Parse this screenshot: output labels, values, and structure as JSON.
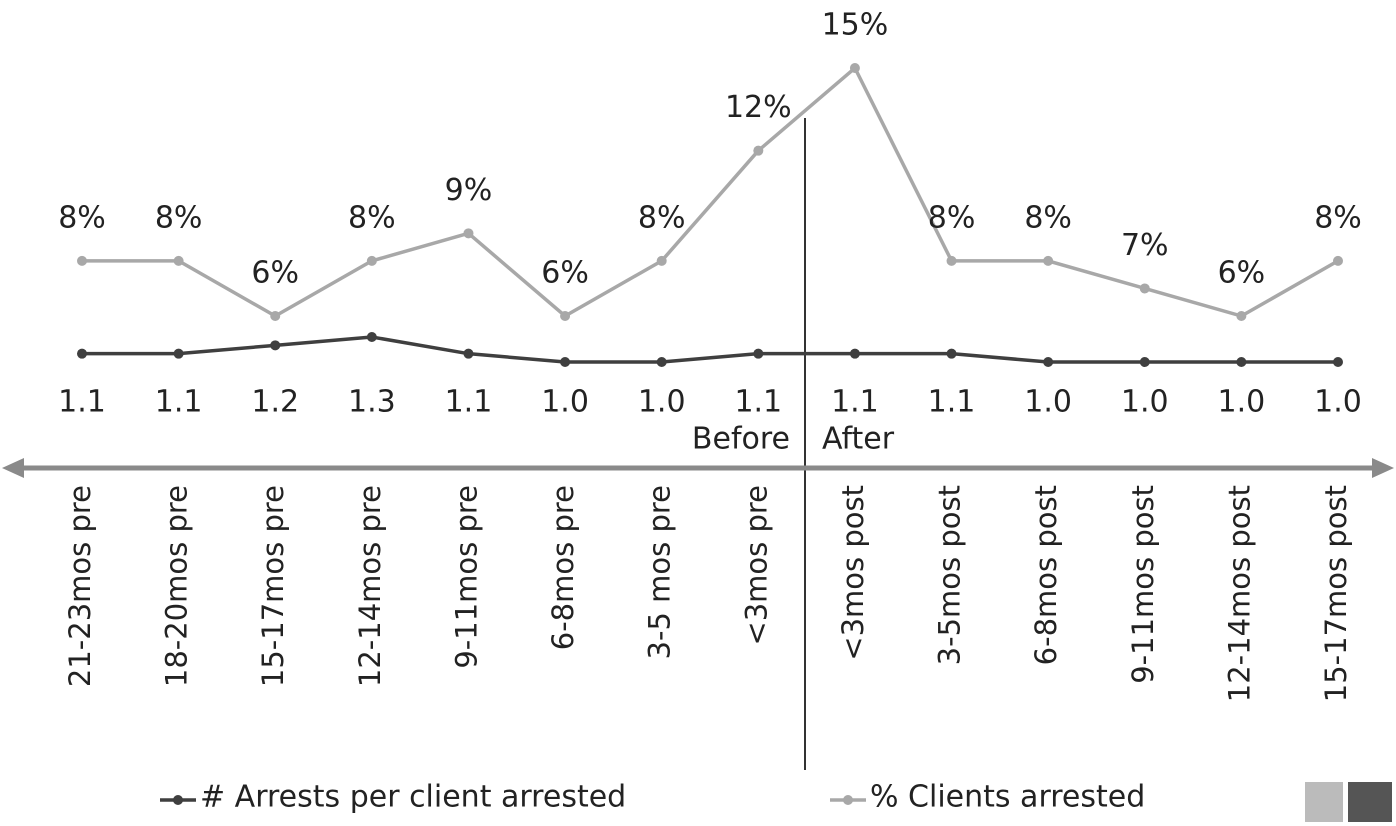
{
  "chart_data": {
    "type": "line",
    "categories": [
      "21-23mos pre",
      "18-20mos pre",
      "15-17mos pre",
      "12-14mos pre",
      "9-11mos pre",
      "6-8mos pre",
      "3-5 mos pre",
      "<3mos pre",
      "<3mos post",
      "3-5mos post",
      "6-8mos post",
      "9-11mos post",
      "12-14mos post",
      "15-17mos post"
    ],
    "series": [
      {
        "name": "# Arrests per client arrested",
        "color": "#3f3f3f",
        "values": [
          1.1,
          1.1,
          1.2,
          1.3,
          1.1,
          1.0,
          1.0,
          1.1,
          1.1,
          1.1,
          1.0,
          1.0,
          1.0,
          1.0
        ],
        "value_labels": [
          "1.1",
          "1.1",
          "1.2",
          "1.3",
          "1.1",
          "1.0",
          "1.0",
          "1.1",
          "1.1",
          "1.1",
          "1.0",
          "1.0",
          "1.0",
          "1.0"
        ]
      },
      {
        "name": "% Clients arrested",
        "color": "#a8a8a8",
        "values": [
          8,
          8,
          6,
          8,
          9,
          6,
          8,
          12,
          15,
          8,
          8,
          7,
          6,
          8
        ],
        "value_labels": [
          "8%",
          "8%",
          "6%",
          "8%",
          "9%",
          "6%",
          "8%",
          "12%",
          "15%",
          "8%",
          "8%",
          "7%",
          "6%",
          "8%"
        ]
      }
    ],
    "annotations": [
      "Before",
      "After"
    ]
  }
}
